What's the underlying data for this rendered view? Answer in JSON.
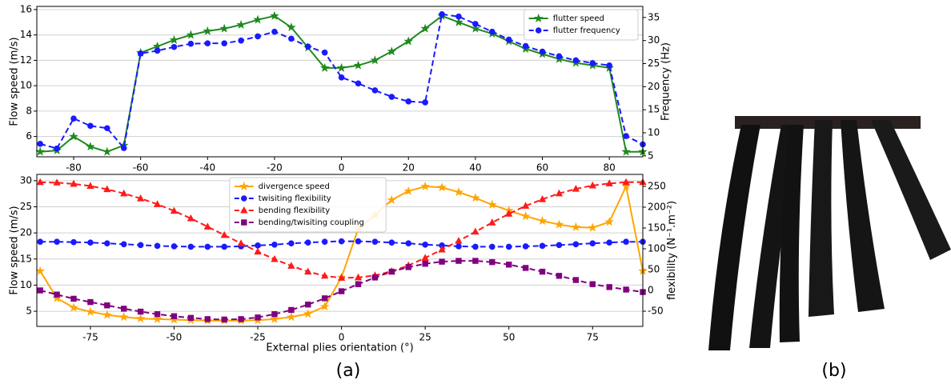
{
  "chart_data": [
    {
      "type": "line",
      "ylabel": "Flow speed (m/s)",
      "y2label": "Frequency (Hz)",
      "x": [
        -90,
        -85,
        -80,
        -75,
        -70,
        -65,
        -60,
        -55,
        -50,
        -45,
        -40,
        -35,
        -30,
        -25,
        -20,
        -15,
        -10,
        -5,
        0,
        5,
        10,
        15,
        20,
        25,
        30,
        35,
        40,
        45,
        50,
        55,
        60,
        65,
        70,
        75,
        80,
        85,
        90
      ],
      "xlim": [
        -91,
        90
      ],
      "xticks": [
        -80,
        -60,
        -40,
        -20,
        0,
        20,
        40,
        60,
        80
      ],
      "ylim": [
        4.4,
        16.25
      ],
      "yticks": [
        6,
        8,
        10,
        12,
        14,
        16
      ],
      "y2lim": [
        4.8,
        37.4
      ],
      "y2ticks": [
        5,
        10,
        15,
        20,
        25,
        30,
        35
      ],
      "grid": true,
      "legend": "upper right",
      "series": [
        {
          "name": "flutter speed",
          "color": "#1f8a1f",
          "linestyle": "solid",
          "marker": "star",
          "axis": "y",
          "values": [
            4.8,
            4.9,
            6.0,
            5.2,
            4.8,
            5.3,
            12.6,
            13.1,
            13.6,
            14.0,
            14.3,
            14.5,
            14.8,
            15.2,
            15.5,
            14.6,
            13.0,
            11.4,
            11.4,
            11.6,
            12.0,
            12.7,
            13.5,
            14.5,
            15.5,
            15.0,
            14.5,
            14.1,
            13.5,
            12.9,
            12.5,
            12.1,
            11.8,
            11.6,
            11.4,
            4.8,
            4.8
          ]
        },
        {
          "name": "flutter frequency",
          "color": "#1a1aff",
          "linestyle": "dashed",
          "marker": "circle",
          "axis": "y2",
          "values": [
            7.6,
            6.6,
            13.1,
            11.5,
            11.0,
            6.7,
            27.2,
            27.8,
            28.6,
            29.3,
            29.4,
            29.4,
            30.0,
            30.9,
            31.9,
            30.4,
            28.7,
            27.4,
            22.0,
            20.7,
            19.2,
            17.8,
            16.8,
            16.6,
            35.7,
            35.2,
            33.6,
            31.9,
            30.2,
            28.8,
            27.6,
            26.6,
            25.7,
            25.1,
            24.6,
            9.3,
            7.5
          ]
        }
      ]
    },
    {
      "type": "line",
      "ylabel": "Flow speed (m/s)",
      "y2label": "flexibility (N⁻¹.m⁻²)",
      "xlabel": "External plies orientation (°)",
      "x": [
        -90,
        -85,
        -80,
        -75,
        -70,
        -65,
        -60,
        -55,
        -50,
        -45,
        -40,
        -35,
        -30,
        -25,
        -20,
        -15,
        -10,
        -5,
        0,
        5,
        10,
        15,
        20,
        25,
        30,
        35,
        40,
        45,
        50,
        55,
        60,
        65,
        70,
        75,
        80,
        85,
        90
      ],
      "xlim": [
        -91,
        90
      ],
      "xticks": [
        -75,
        -50,
        -25,
        0,
        25,
        50,
        75
      ],
      "ylim": [
        2.1,
        31.2
      ],
      "yticks": [
        5,
        10,
        15,
        20,
        25,
        30
      ],
      "y2lim": [
        -86.5,
        278.8
      ],
      "y2ticks": [
        -50,
        0,
        50,
        100,
        150,
        200,
        250
      ],
      "grid": true,
      "legend": "upper center",
      "series": [
        {
          "name": "divergence speed",
          "color": "#ffa500",
          "linestyle": "solid",
          "marker": "star",
          "axis": "y",
          "values": [
            12.7,
            7.5,
            5.7,
            4.9,
            4.3,
            3.9,
            3.6,
            3.5,
            3.4,
            3.3,
            3.2,
            3.2,
            3.2,
            3.3,
            3.5,
            3.9,
            4.5,
            5.9,
            11.5,
            20.8,
            23.4,
            26.3,
            28.0,
            28.9,
            28.7,
            27.8,
            26.7,
            25.4,
            24.3,
            23.2,
            22.3,
            21.6,
            21.1,
            21.0,
            22.1,
            28.9,
            12.7
          ]
        },
        {
          "name": "twisiting flexibility",
          "color": "#1a1aff",
          "linestyle": "dashed",
          "marker": "circle",
          "axis": "y2",
          "values": [
            117,
            117,
            116,
            115,
            113,
            111,
            109,
            107,
            106,
            105,
            105,
            105,
            106,
            108,
            110,
            113,
            115,
            117,
            118,
            118,
            117,
            115,
            113,
            110,
            108,
            106,
            105,
            105,
            105,
            106,
            107,
            109,
            111,
            113,
            115,
            117,
            117
          ]
        },
        {
          "name": "bending flexibility",
          "color": "#ff1a1a",
          "linestyle": "dashed",
          "marker": "triangle",
          "axis": "y2",
          "values": [
            260,
            259,
            256,
            251,
            243,
            233,
            221,
            207,
            191,
            173,
            153,
            133,
            113,
            93,
            75,
            59,
            45,
            35,
            30,
            31,
            36,
            46,
            60,
            78,
            98,
            119,
            141,
            163,
            184,
            203,
            219,
            233,
            244,
            252,
            257,
            260,
            260
          ]
        },
        {
          "name": "bending/twisiting coupling",
          "color": "#800080",
          "linestyle": "dashed",
          "marker": "square",
          "axis": "y2",
          "values": [
            0,
            -10,
            -20,
            -28,
            -36,
            -44,
            -51,
            -57,
            -62,
            -66,
            -69,
            -70,
            -69,
            -65,
            -57,
            -47,
            -34,
            -19,
            -2,
            15,
            31,
            45,
            56,
            64,
            69,
            71,
            71,
            68,
            62,
            54,
            45,
            35,
            25,
            15,
            8,
            2,
            -4
          ]
        }
      ]
    }
  ],
  "panel_labels": [
    "(a)",
    "(b)"
  ]
}
